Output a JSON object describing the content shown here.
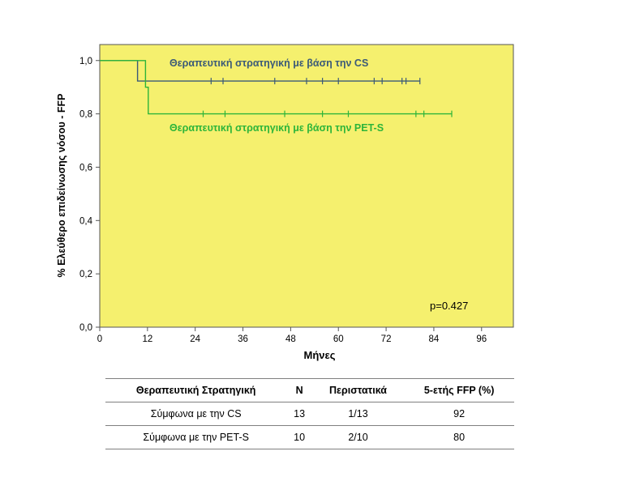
{
  "chart_data": {
    "type": "line",
    "subtype": "kaplan-meier",
    "ylabel": "% Ελεύθερο επιδείνωσης νόσου - FFP",
    "xlabel": "Μήνες",
    "x_ticks": [
      "0",
      "12",
      "24",
      "36",
      "48",
      "60",
      "72",
      "84",
      "96"
    ],
    "y_ticks": [
      "0,0",
      "0,2",
      "0,4",
      "0,6",
      "0,8",
      "1,0"
    ],
    "xlim": [
      0,
      104
    ],
    "ylim": [
      0,
      1.06
    ],
    "grid": false,
    "annotation": "p=0.427",
    "colors": {
      "plot_bg": "#f5f06e",
      "axis": "#555555"
    },
    "series": [
      {
        "name": "Θεραπευτική στρατηγική με βάση την CS",
        "color": "#3b5a78",
        "steps": [
          [
            0,
            1.0
          ],
          [
            9.5,
            1.0
          ],
          [
            9.5,
            0.923
          ],
          [
            80.5,
            0.923
          ]
        ],
        "censored": [
          28,
          31,
          44,
          52,
          56,
          60,
          69,
          71,
          76,
          77,
          80.5
        ]
      },
      {
        "name": "Θεραπευτική στρατηγική με βάση την PET-S",
        "color": "#2db53a",
        "steps": [
          [
            0,
            1.0
          ],
          [
            11.5,
            1.0
          ],
          [
            11.5,
            0.9
          ],
          [
            12.2,
            0.9
          ],
          [
            12.2,
            0.8
          ],
          [
            88.5,
            0.8
          ]
        ],
        "censored": [
          26,
          31.5,
          46.5,
          56,
          62.5,
          79.5,
          81.5,
          88.5
        ]
      }
    ]
  },
  "table": {
    "headers": [
      "Θεραπευτική Στρατηγική",
      "N",
      "Περιστατικά",
      "5-ετής FFP (%)"
    ],
    "rows": [
      [
        "Σύμφωνα με την  CS",
        "13",
        "1/13",
        "92"
      ],
      [
        "Σύμφωνα με την PET-S",
        "10",
        "2/10",
        "80"
      ]
    ]
  }
}
